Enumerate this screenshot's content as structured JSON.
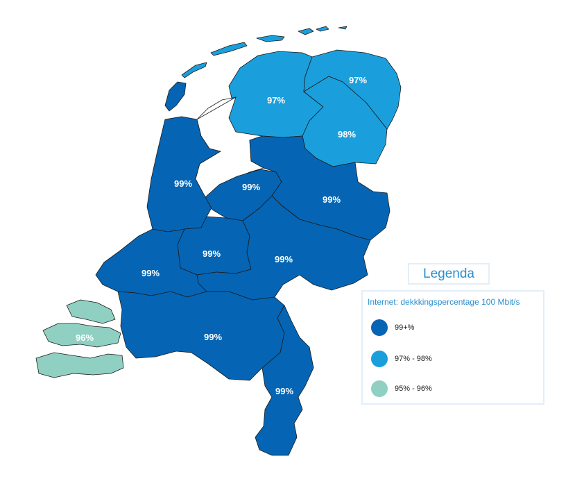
{
  "colors": {
    "high": "#0565b4",
    "mid": "#1a9fdc",
    "low": "#8fd0c3"
  },
  "provinces": [
    {
      "id": "friesland",
      "label": "97%",
      "class": "mid"
    },
    {
      "id": "groningen",
      "label": "97%",
      "class": "mid"
    },
    {
      "id": "drenthe",
      "label": "98%",
      "class": "mid"
    },
    {
      "id": "noord-holland",
      "label": "99%",
      "class": "high"
    },
    {
      "id": "flevoland",
      "label": "99%",
      "class": "high"
    },
    {
      "id": "overijssel",
      "label": "99%",
      "class": "high"
    },
    {
      "id": "utrecht",
      "label": "99%",
      "class": "high"
    },
    {
      "id": "gelderland",
      "label": "99%",
      "class": "high"
    },
    {
      "id": "zuid-holland",
      "label": "99%",
      "class": "high"
    },
    {
      "id": "noord-brabant",
      "label": "99%",
      "class": "high"
    },
    {
      "id": "limburg",
      "label": "99%",
      "class": "high"
    },
    {
      "id": "zeeland",
      "label": "96%",
      "class": "low"
    }
  ],
  "legend": {
    "title": "Legenda",
    "subtitle": "Internet: dekkkingspercentage 100 Mbit/s",
    "items": [
      {
        "label": "99+%",
        "class": "high"
      },
      {
        "label": "97% - 98%",
        "class": "mid"
      },
      {
        "label": "95% - 96%",
        "class": "low"
      }
    ]
  }
}
